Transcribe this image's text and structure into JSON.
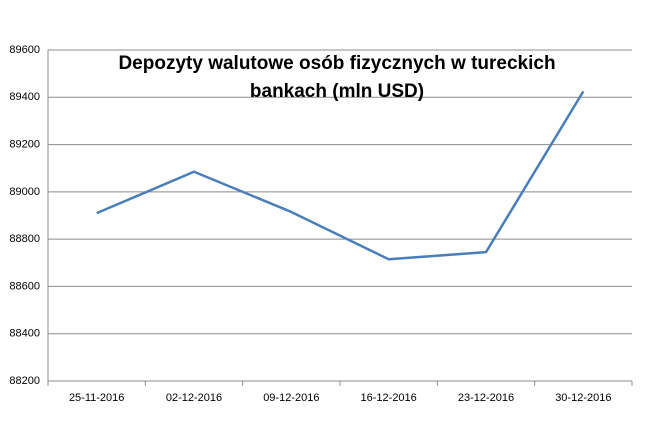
{
  "chart_data": {
    "type": "line",
    "title": "Depozyty walutowe osób fizycznych w tureckich bankach (mln USD)",
    "categories": [
      "25-11-2016",
      "02-12-2016",
      "09-12-2016",
      "16-12-2016",
      "23-12-2016",
      "30-12-2016"
    ],
    "values": [
      88910,
      89085,
      88915,
      88715,
      88745,
      89425
    ],
    "color": "#4a7ebb",
    "ylim": [
      88200,
      89600
    ],
    "yticks": [
      88200,
      88400,
      88600,
      88800,
      89000,
      89200,
      89400,
      89600
    ],
    "grid": true
  }
}
